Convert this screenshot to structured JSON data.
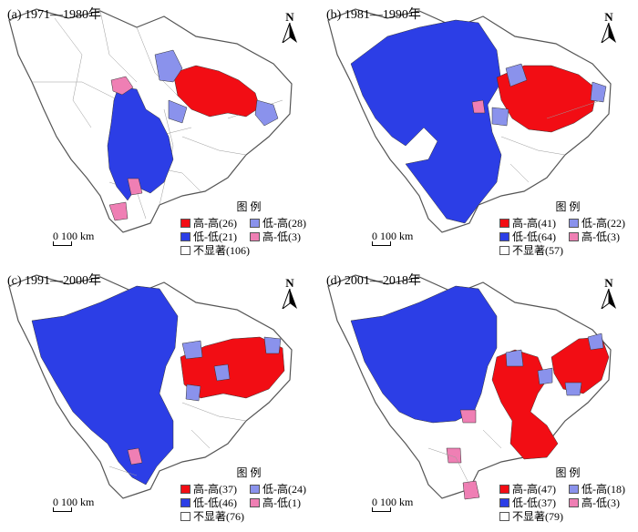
{
  "colors": {
    "high_high": "#f20d14",
    "low_low": "#2c3ee6",
    "low_high": "#8a92ec",
    "high_low": "#ef7fb4",
    "not_significant": "#ffffff"
  },
  "legend_title": "图 例",
  "scale_label": "0  100 km",
  "north_label": "N",
  "panels": [
    {
      "title": "(a) 1971—1980年",
      "legend": {
        "high_high": "高-高(26)",
        "low_high": "低-高(28)",
        "low_low": "低-低(21)",
        "high_low": "高-低(3)",
        "not_significant": "不显著(106)"
      }
    },
    {
      "title": "(b) 1981—1990年",
      "legend": {
        "high_high": "高-高(41)",
        "low_high": "低-高(22)",
        "low_low": "低-低(64)",
        "high_low": "高-低(3)",
        "not_significant": "不显著(57)"
      }
    },
    {
      "title": "(c) 1991—2000年",
      "legend": {
        "high_high": "高-高(37)",
        "low_high": "低-高(24)",
        "low_low": "低-低(46)",
        "high_low": "高-低(1)",
        "not_significant": "不显著(76)"
      }
    },
    {
      "title": "(d) 2001—2018年",
      "legend": {
        "high_high": "高-高(47)",
        "low_high": "低-高(18)",
        "low_low": "低-低(37)",
        "high_low": "高-低(3)",
        "not_significant": "不显著(79)"
      }
    }
  ]
}
